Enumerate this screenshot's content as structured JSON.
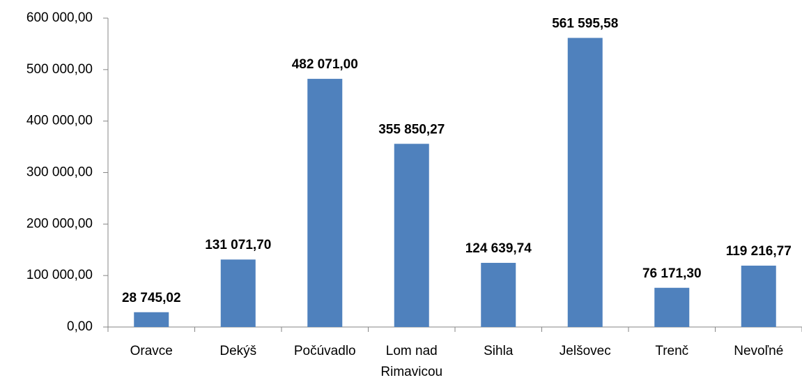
{
  "chart_data": {
    "type": "bar",
    "categories": [
      "Oravce",
      "Dekýš",
      "Počúvadlo",
      "Lom nad Rimavicou",
      "Sihla",
      "Jelšovec",
      "Trenč",
      "Nevoľné"
    ],
    "values": [
      28745.02,
      131071.7,
      482071.0,
      355850.27,
      124639.74,
      561595.58,
      76171.3,
      119216.77
    ],
    "value_labels": [
      "28 745,02",
      "131 071,70",
      "482 071,00",
      "355 850,27",
      "124 639,74",
      "561 595,58",
      "76 171,30",
      "119 216,77"
    ],
    "color": "#4f81bd",
    "ylim": [
      0,
      600000
    ],
    "yticks": [
      {
        "value": 0,
        "label": "0,00"
      },
      {
        "value": 100000,
        "label": "100 000,00"
      },
      {
        "value": 200000,
        "label": "200 000,00"
      },
      {
        "value": 300000,
        "label": "300 000,00"
      },
      {
        "value": 400000,
        "label": "400 000,00"
      },
      {
        "value": 500000,
        "label": "500 000,00"
      },
      {
        "value": 600000,
        "label": "600 000,00"
      }
    ],
    "grid": false
  }
}
